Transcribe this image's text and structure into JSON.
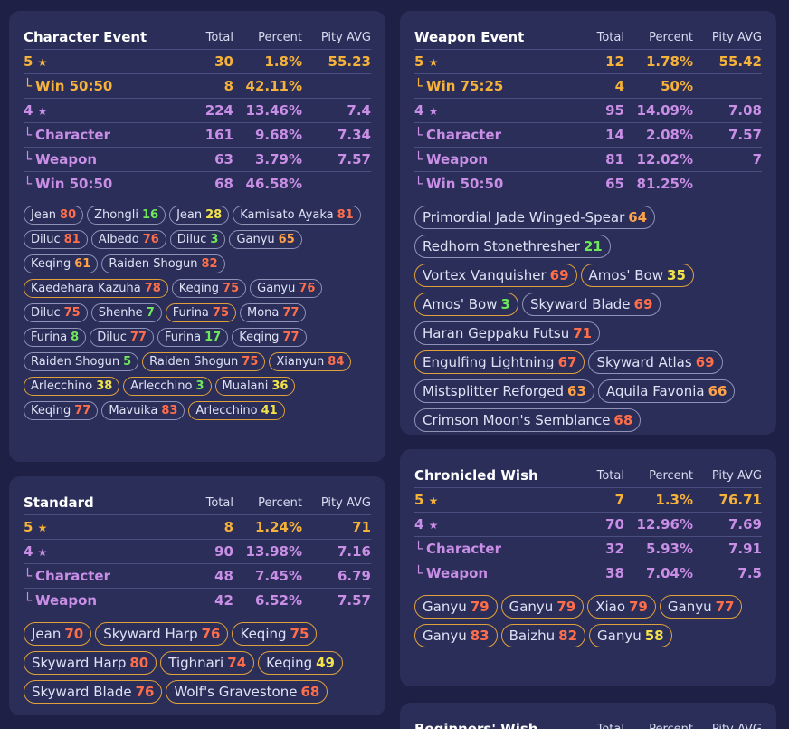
{
  "character_event": {
    "title": "Character Event",
    "headers": {
      "total": "Total",
      "percent": "Percent",
      "pity": "Pity AVG"
    },
    "rows": [
      {
        "label": "5",
        "star": "★",
        "cls": "gold",
        "sub": false,
        "total": "30",
        "percent": "1.8%",
        "pity": "55.23"
      },
      {
        "label": "Win 50:50",
        "star": "",
        "cls": "gold",
        "sub": true,
        "total": "8",
        "percent": "42.11%",
        "pity": ""
      },
      {
        "label": "4",
        "star": "★",
        "cls": "purple",
        "sub": false,
        "total": "224",
        "percent": "13.46%",
        "pity": "7.4"
      },
      {
        "label": "Character",
        "star": "",
        "cls": "purple",
        "sub": true,
        "total": "161",
        "percent": "9.68%",
        "pity": "7.34"
      },
      {
        "label": "Weapon",
        "star": "",
        "cls": "purple",
        "sub": true,
        "total": "63",
        "percent": "3.79%",
        "pity": "7.57"
      },
      {
        "label": "Win 50:50",
        "star": "",
        "cls": "purple",
        "sub": true,
        "total": "68",
        "percent": "46.58%",
        "pity": ""
      }
    ],
    "pulls": [
      {
        "name": "Jean",
        "n": "80",
        "c": "red",
        "b": false
      },
      {
        "name": "Zhongli",
        "n": "16",
        "c": "green",
        "b": false
      },
      {
        "name": "Jean",
        "n": "28",
        "c": "yellow",
        "b": false
      },
      {
        "name": "Kamisato Ayaka",
        "n": "81",
        "c": "red",
        "b": false
      },
      {
        "name": "Diluc",
        "n": "81",
        "c": "red",
        "b": false
      },
      {
        "name": "Albedo",
        "n": "76",
        "c": "red",
        "b": false
      },
      {
        "name": "Diluc",
        "n": "3",
        "c": "green",
        "b": false
      },
      {
        "name": "Ganyu",
        "n": "65",
        "c": "orange",
        "b": false
      },
      {
        "name": "Keqing",
        "n": "61",
        "c": "orange",
        "b": false
      },
      {
        "name": "Raiden Shogun",
        "n": "82",
        "c": "red",
        "b": false
      },
      {
        "name": "Kaedehara Kazuha",
        "n": "78",
        "c": "red",
        "b": true
      },
      {
        "name": "Keqing",
        "n": "75",
        "c": "red",
        "b": false
      },
      {
        "name": "Ganyu",
        "n": "76",
        "c": "red",
        "b": false
      },
      {
        "name": "Diluc",
        "n": "75",
        "c": "red",
        "b": false
      },
      {
        "name": "Shenhe",
        "n": "7",
        "c": "green",
        "b": false
      },
      {
        "name": "Furina",
        "n": "75",
        "c": "red",
        "b": true
      },
      {
        "name": "Mona",
        "n": "77",
        "c": "red",
        "b": false
      },
      {
        "name": "Furina",
        "n": "8",
        "c": "green",
        "b": false
      },
      {
        "name": "Diluc",
        "n": "77",
        "c": "red",
        "b": false
      },
      {
        "name": "Furina",
        "n": "17",
        "c": "green",
        "b": false
      },
      {
        "name": "Keqing",
        "n": "77",
        "c": "red",
        "b": false
      },
      {
        "name": "Raiden Shogun",
        "n": "5",
        "c": "green",
        "b": false
      },
      {
        "name": "Raiden Shogun",
        "n": "75",
        "c": "red",
        "b": true
      },
      {
        "name": "Xianyun",
        "n": "84",
        "c": "red",
        "b": true
      },
      {
        "name": "Arlecchino",
        "n": "38",
        "c": "yellow",
        "b": true
      },
      {
        "name": "Arlecchino",
        "n": "3",
        "c": "green",
        "b": true
      },
      {
        "name": "Mualani",
        "n": "36",
        "c": "yellow",
        "b": true
      },
      {
        "name": "Keqing",
        "n": "77",
        "c": "red",
        "b": false
      },
      {
        "name": "Mavuika",
        "n": "83",
        "c": "red",
        "b": false
      },
      {
        "name": "Arlecchino",
        "n": "41",
        "c": "yellow",
        "b": true
      }
    ]
  },
  "weapon_event": {
    "title": "Weapon Event",
    "headers": {
      "total": "Total",
      "percent": "Percent",
      "pity": "Pity AVG"
    },
    "rows": [
      {
        "label": "5",
        "star": "★",
        "cls": "gold",
        "sub": false,
        "total": "12",
        "percent": "1.78%",
        "pity": "55.42"
      },
      {
        "label": "Win 75:25",
        "star": "",
        "cls": "gold",
        "sub": true,
        "total": "4",
        "percent": "50%",
        "pity": ""
      },
      {
        "label": "4",
        "star": "★",
        "cls": "purple",
        "sub": false,
        "total": "95",
        "percent": "14.09%",
        "pity": "7.08"
      },
      {
        "label": "Character",
        "star": "",
        "cls": "purple",
        "sub": true,
        "total": "14",
        "percent": "2.08%",
        "pity": "7.57"
      },
      {
        "label": "Weapon",
        "star": "",
        "cls": "purple",
        "sub": true,
        "total": "81",
        "percent": "12.02%",
        "pity": "7"
      },
      {
        "label": "Win 50:50",
        "star": "",
        "cls": "purple",
        "sub": true,
        "total": "65",
        "percent": "81.25%",
        "pity": ""
      }
    ],
    "pulls": [
      {
        "name": "Primordial Jade Winged-Spear",
        "n": "64",
        "c": "orange",
        "b": false
      },
      {
        "name": "Redhorn Stonethresher",
        "n": "21",
        "c": "green",
        "b": false
      },
      {
        "name": "Vortex Vanquisher",
        "n": "69",
        "c": "red",
        "b": true
      },
      {
        "name": "Amos' Bow",
        "n": "35",
        "c": "yellow",
        "b": true
      },
      {
        "name": "Amos' Bow",
        "n": "3",
        "c": "green",
        "b": true
      },
      {
        "name": "Skyward Blade",
        "n": "69",
        "c": "red",
        "b": false
      },
      {
        "name": "Haran Geppaku Futsu",
        "n": "71",
        "c": "red",
        "b": false
      },
      {
        "name": "Engulfing Lightning",
        "n": "67",
        "c": "red",
        "b": true
      },
      {
        "name": "Skyward Atlas",
        "n": "69",
        "c": "red",
        "b": false
      },
      {
        "name": "Mistsplitter Reforged",
        "n": "63",
        "c": "orange",
        "b": false
      },
      {
        "name": "Aquila Favonia",
        "n": "66",
        "c": "orange",
        "b": false
      },
      {
        "name": "Crimson Moon's Semblance",
        "n": "68",
        "c": "red",
        "b": false
      }
    ]
  },
  "standard": {
    "title": "Standard",
    "headers": {
      "total": "Total",
      "percent": "Percent",
      "pity": "Pity AVG"
    },
    "rows": [
      {
        "label": "5",
        "star": "★",
        "cls": "gold",
        "sub": false,
        "total": "8",
        "percent": "1.24%",
        "pity": "71"
      },
      {
        "label": "4",
        "star": "★",
        "cls": "purple",
        "sub": false,
        "total": "90",
        "percent": "13.98%",
        "pity": "7.16"
      },
      {
        "label": "Character",
        "star": "",
        "cls": "purple",
        "sub": true,
        "total": "48",
        "percent": "7.45%",
        "pity": "6.79"
      },
      {
        "label": "Weapon",
        "star": "",
        "cls": "purple",
        "sub": true,
        "total": "42",
        "percent": "6.52%",
        "pity": "7.57"
      }
    ],
    "pulls": [
      {
        "name": "Jean",
        "n": "70",
        "c": "red",
        "b": true
      },
      {
        "name": "Skyward Harp",
        "n": "76",
        "c": "red",
        "b": true
      },
      {
        "name": "Keqing",
        "n": "75",
        "c": "red",
        "b": true
      },
      {
        "name": "Skyward Harp",
        "n": "80",
        "c": "red",
        "b": true
      },
      {
        "name": "Tighnari",
        "n": "74",
        "c": "red",
        "b": true
      },
      {
        "name": "Keqing",
        "n": "49",
        "c": "yellow",
        "b": true
      },
      {
        "name": "Skyward Blade",
        "n": "76",
        "c": "red",
        "b": true
      },
      {
        "name": "Wolf's Gravestone",
        "n": "68",
        "c": "red",
        "b": true
      }
    ]
  },
  "chronicled": {
    "title": "Chronicled Wish",
    "headers": {
      "total": "Total",
      "percent": "Percent",
      "pity": "Pity AVG"
    },
    "rows": [
      {
        "label": "5",
        "star": "★",
        "cls": "gold",
        "sub": false,
        "total": "7",
        "percent": "1.3%",
        "pity": "76.71"
      },
      {
        "label": "4",
        "star": "★",
        "cls": "purple",
        "sub": false,
        "total": "70",
        "percent": "12.96%",
        "pity": "7.69"
      },
      {
        "label": "Character",
        "star": "",
        "cls": "purple",
        "sub": true,
        "total": "32",
        "percent": "5.93%",
        "pity": "7.91"
      },
      {
        "label": "Weapon",
        "star": "",
        "cls": "purple",
        "sub": true,
        "total": "38",
        "percent": "7.04%",
        "pity": "7.5"
      }
    ],
    "pulls": [
      {
        "name": "Ganyu",
        "n": "79",
        "c": "red",
        "b": true
      },
      {
        "name": "Ganyu",
        "n": "79",
        "c": "red",
        "b": true
      },
      {
        "name": "Xiao",
        "n": "79",
        "c": "red",
        "b": true
      },
      {
        "name": "Ganyu",
        "n": "77",
        "c": "red",
        "b": true
      },
      {
        "name": "Ganyu",
        "n": "83",
        "c": "red",
        "b": true
      },
      {
        "name": "Baizhu",
        "n": "82",
        "c": "red",
        "b": true
      },
      {
        "name": "Ganyu",
        "n": "58",
        "c": "yellow",
        "b": true
      }
    ]
  },
  "beginner": {
    "title": "Beginners' Wish",
    "headers": {
      "total": "Total",
      "percent": "Percent",
      "pity": "Pity AVG"
    }
  }
}
